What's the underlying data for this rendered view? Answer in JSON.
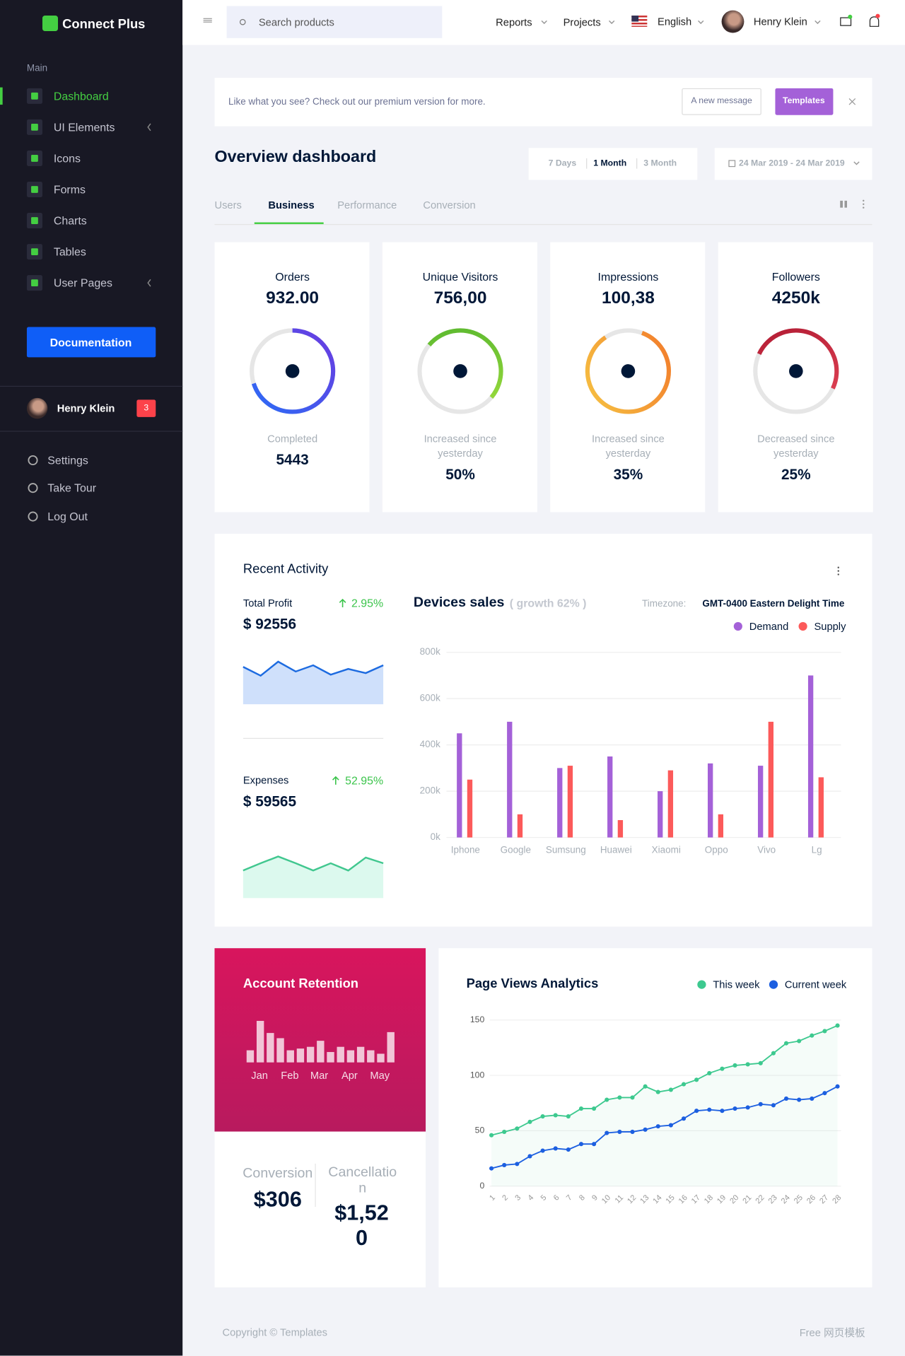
{
  "brand": "Connect Plus",
  "sidebar": {
    "section": "Main",
    "menu": [
      "Dashboard",
      "UI Elements",
      "Icons",
      "Forms",
      "Charts",
      "Tables",
      "User Pages"
    ],
    "button": "Documentation",
    "user": {
      "name": "Henry Klein",
      "badge": "3"
    },
    "links": [
      "Settings",
      "Take Tour",
      "Log Out"
    ]
  },
  "topbar": {
    "search": "Search products",
    "menu": [
      "Reports",
      "Projects"
    ],
    "language": "English",
    "user": "Henry Klein"
  },
  "banner": {
    "text": "Like what you see? Check out our premium version for more.",
    "buttons": [
      "A new message",
      "Templates"
    ]
  },
  "page": {
    "title": "Overview dashboard",
    "ranges": [
      "7 Days",
      "1 Month",
      "3 Month"
    ],
    "date": "24 Mar 2019 - 24 Mar 2019",
    "tabs": [
      "Users",
      "Business",
      "Performance",
      "Conversion"
    ]
  },
  "stats": [
    {
      "label": "Orders",
      "value": "932.00",
      "ring": 70,
      "caption": "Completed",
      "figure": "5443"
    },
    {
      "label": "Unique Visitors",
      "value": "756,00",
      "ring": 50,
      "caption": "Increased since yesterday",
      "figure": "50%"
    },
    {
      "label": "Impressions",
      "value": "100,38",
      "ring": 85,
      "caption": "Increased since yesterday",
      "figure": "35%"
    },
    {
      "label": "Followers",
      "value": "4250k",
      "ring": 50,
      "caption": "Decreased since yesterday",
      "figure": "25%"
    }
  ],
  "activity": {
    "title": "Recent Activity",
    "profit": {
      "label": "Total Profit",
      "change": "2.95%",
      "amount": "$ 92556",
      "values": [
        72,
        55,
        82,
        63,
        75,
        57,
        68,
        60,
        75
      ],
      "ylim": [
        0,
        100
      ],
      "color": "#1d6be0"
    },
    "expenses": {
      "label": "Expenses",
      "change": "52.95%",
      "amount": "$ 59565",
      "values": [
        53,
        67,
        80,
        67,
        53,
        67,
        53,
        78,
        67
      ],
      "ylim": [
        0,
        100
      ],
      "color": "#41c78f"
    }
  },
  "devices_chart": {
    "type": "bar",
    "title": "Devices sales",
    "subtitle": "( growth 62% )",
    "timezone_label": "Timezone:",
    "timezone": "GMT-0400 Eastern Delight Time",
    "categories": [
      "Iphone",
      "Google",
      "Sumsung",
      "Huawei",
      "Xiaomi",
      "Oppo",
      "Vivo",
      "Lg"
    ],
    "series": [
      {
        "name": "Demand",
        "color": "#a461d8",
        "values": [
          450000,
          500000,
          300000,
          350000,
          200000,
          320000,
          310000,
          700000
        ]
      },
      {
        "name": "Supply",
        "color": "#fc5a5a",
        "values": [
          250000,
          100000,
          310000,
          75000,
          290000,
          100000,
          500000,
          260000
        ]
      }
    ],
    "ylim": [
      0,
      800000
    ],
    "yticks": [
      {
        "value": 0,
        "label": "0k"
      },
      {
        "value": 200000,
        "label": "200k"
      },
      {
        "value": 400000,
        "label": "400k"
      },
      {
        "value": 600000,
        "label": "600k"
      },
      {
        "value": 800000,
        "label": "800k"
      }
    ],
    "grid": true
  },
  "retention": {
    "type": "bar",
    "title": "Account Retention",
    "values": [
      14,
      48,
      34,
      28,
      14,
      16,
      18,
      25,
      12,
      18,
      14,
      18,
      14,
      10,
      35
    ],
    "ylim": [
      0,
      50
    ],
    "months": [
      "Jan",
      "Feb",
      "Mar",
      "Apr",
      "May"
    ],
    "conversion": {
      "label": "Conversion",
      "value": "$306"
    },
    "cancellation": {
      "label": "Cancellation",
      "value": "$1,520"
    }
  },
  "pageviews": {
    "type": "line",
    "title": "Page Views Analytics",
    "categories": [
      "1",
      "2",
      "3",
      "4",
      "5",
      "6",
      "7",
      "8",
      "9",
      "10",
      "11",
      "12",
      "13",
      "14",
      "15",
      "16",
      "17",
      "18",
      "19",
      "20",
      "21",
      "22",
      "23",
      "24",
      "25",
      "26",
      "27",
      "28"
    ],
    "series": [
      {
        "name": "This week",
        "color": "#3dc98f",
        "values": [
          46,
          49,
          52,
          58,
          63,
          64,
          63,
          70,
          70,
          78,
          80,
          80,
          90,
          85,
          87,
          92,
          96,
          102,
          106,
          109,
          110,
          111,
          120,
          129,
          131,
          136,
          140,
          145
        ]
      },
      {
        "name": "Current week",
        "color": "#1c5fe0",
        "values": [
          16,
          19,
          20,
          27,
          32,
          34,
          33,
          38,
          38,
          48,
          49,
          49,
          51,
          54,
          55,
          61,
          68,
          69,
          68,
          70,
          71,
          74,
          73,
          79,
          78,
          79,
          84,
          90
        ]
      }
    ],
    "ylim": [
      0,
      150
    ],
    "yticks": [
      0,
      50,
      100,
      150
    ],
    "grid": true
  },
  "footer": {
    "copyright": "Copyright © Templates",
    "right": "Free 网页模板"
  }
}
